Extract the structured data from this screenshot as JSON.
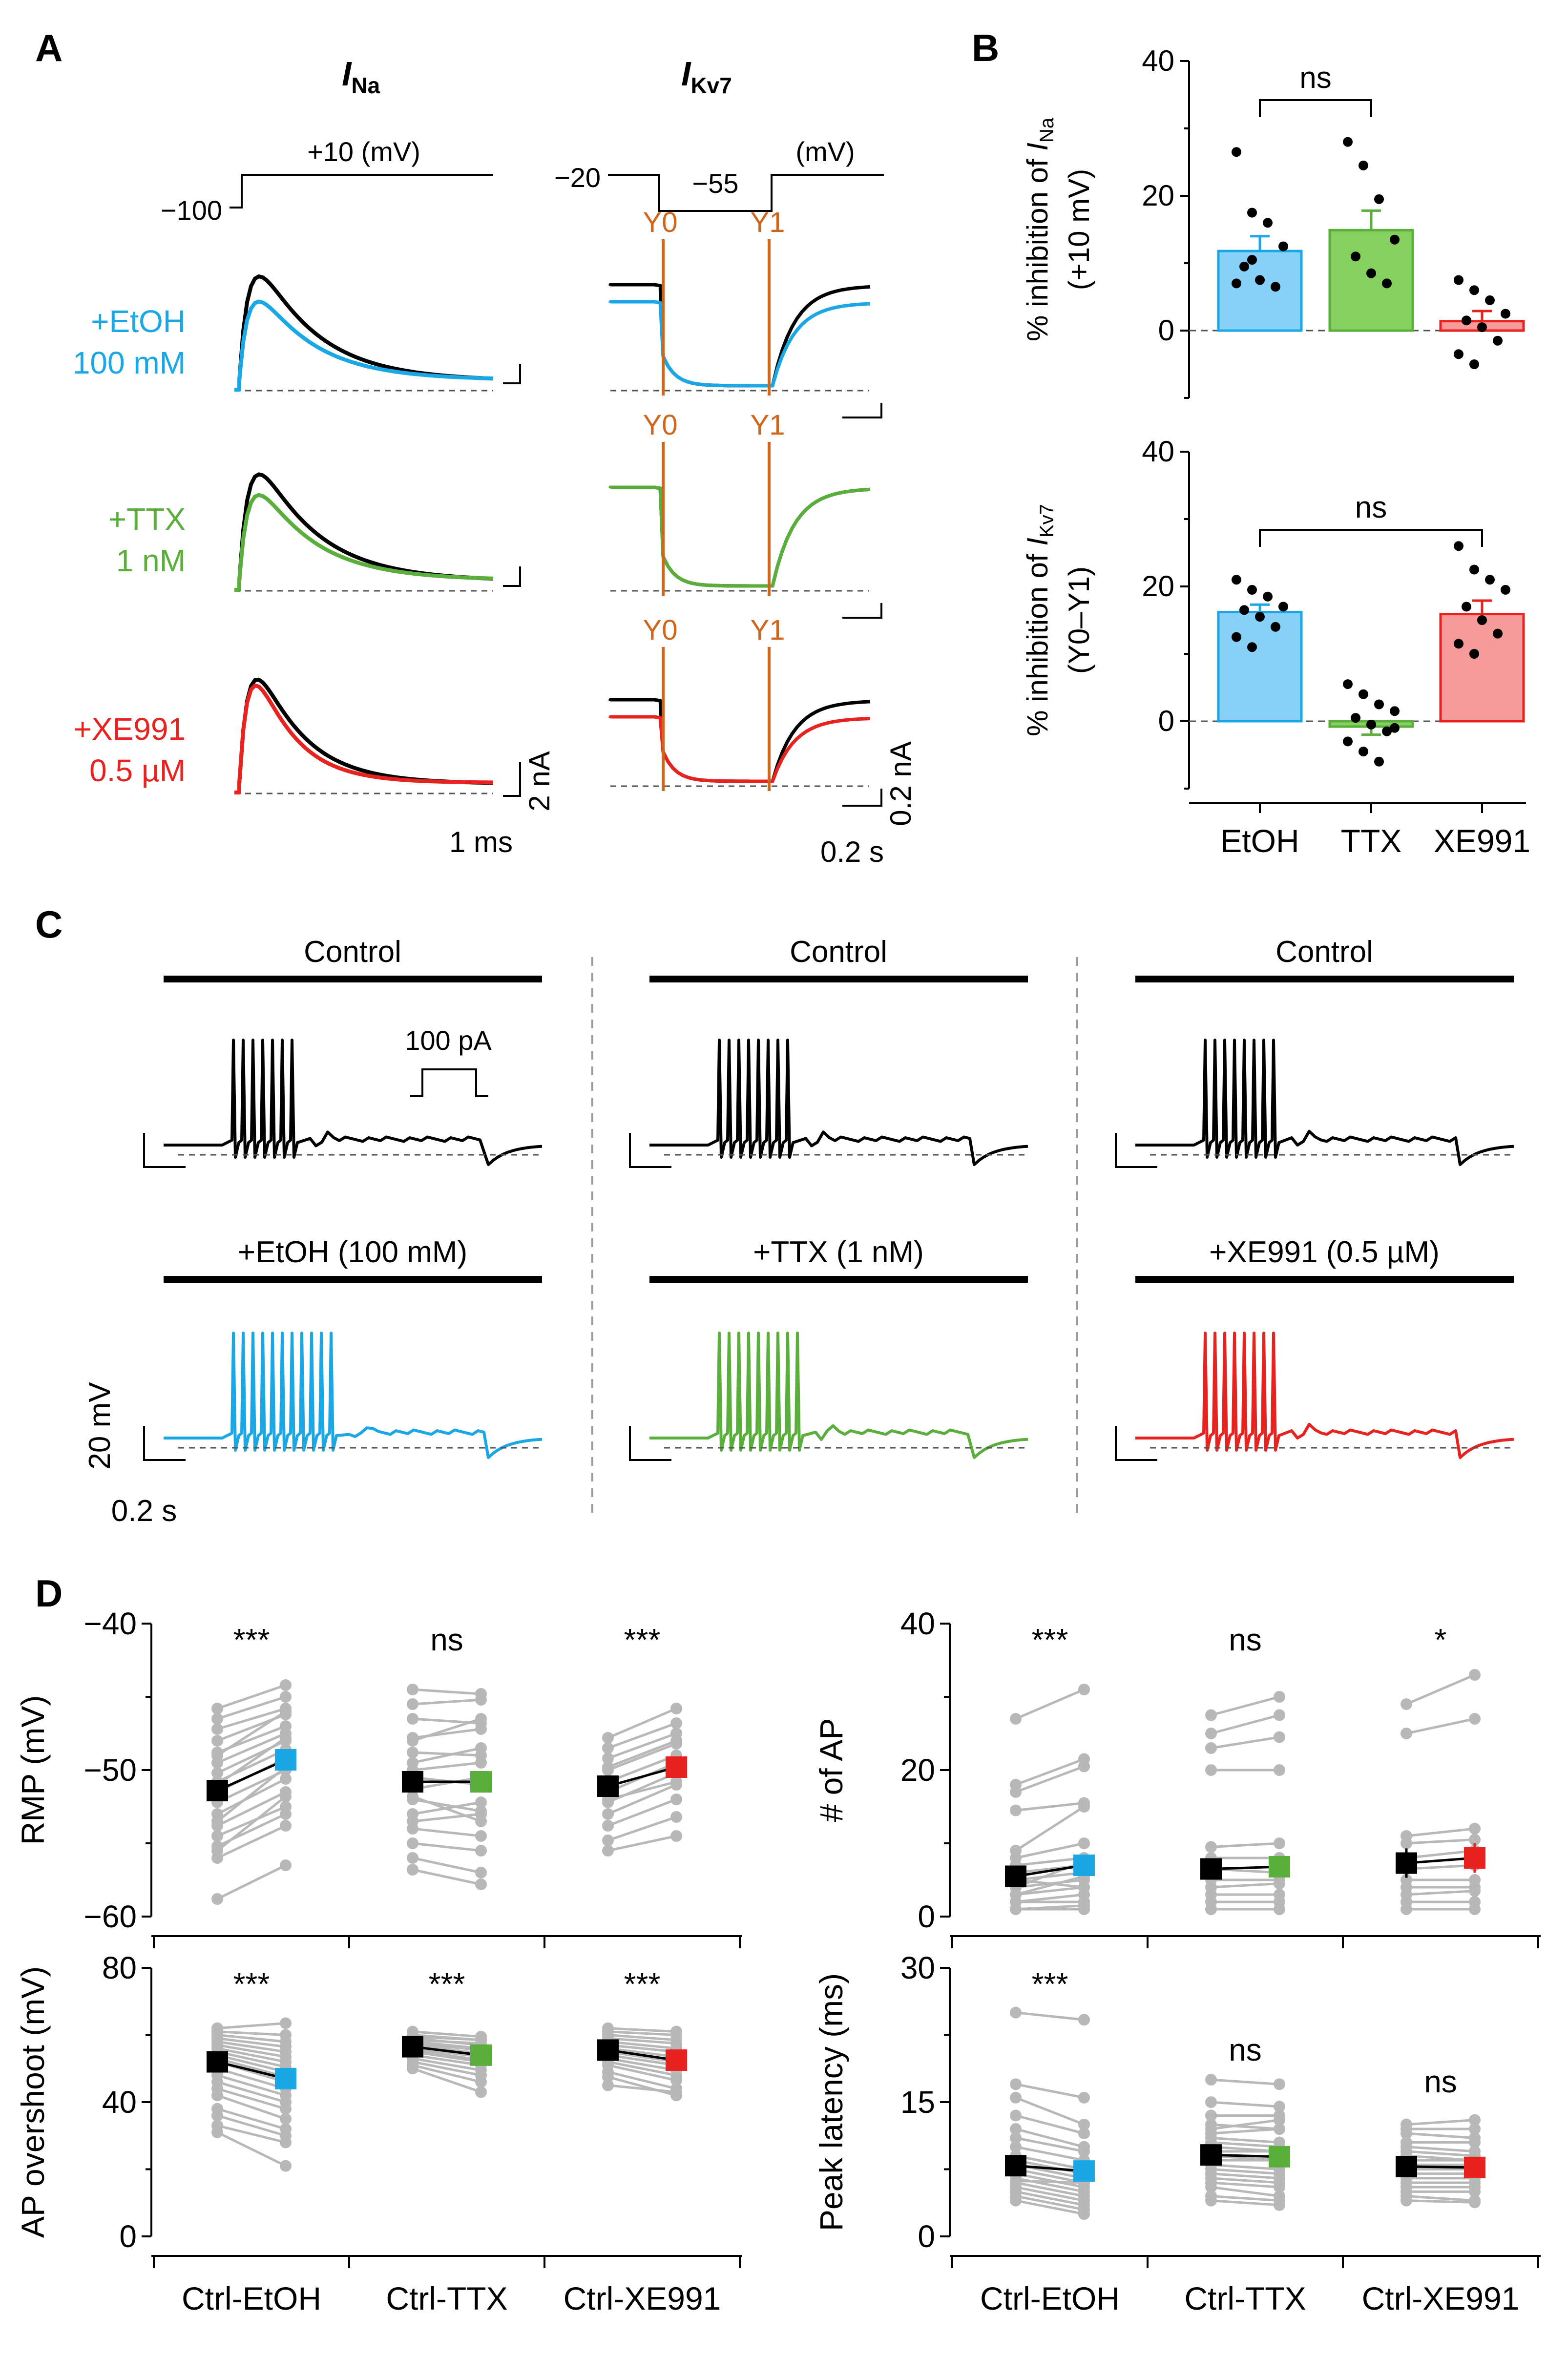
{
  "colors": {
    "black": "#000000",
    "etoh": "#1aa7e6",
    "ttx": "#5aae3b",
    "xe991": "#e8231f",
    "orange": "#d0651c",
    "etoh_fill": "#88d2f7",
    "ttx_fill": "#86d060",
    "xe_fill": "#f59a9a",
    "gray": "#b8b8b8",
    "dash": "#555555"
  },
  "panel_labels": {
    "a": "A",
    "b": "B",
    "c": "C",
    "d": "D"
  },
  "panelA": {
    "ina_title": "I",
    "ina_sub": "Na",
    "ikv7_title": "I",
    "ikv7_sub": "Kv7",
    "ina_protocol": {
      "hold": "−100",
      "step": "+10 (mV)"
    },
    "ikv7_protocol": {
      "hold": "−20",
      "step": "−55",
      "unit": "(mV)"
    },
    "markers": {
      "y0": "Y0",
      "y1": "Y1"
    },
    "rows": [
      {
        "line1": "+EtOH",
        "line2": "100 mM",
        "color": "#1aa7e6"
      },
      {
        "line1": "+TTX",
        "line2": "1 nM",
        "color": "#5aae3b"
      },
      {
        "line1": "+XE991",
        "line2": "0.5 µM",
        "color": "#e8231f"
      }
    ],
    "scales": {
      "ina_y": "2 nA",
      "ina_x": "1 ms",
      "ikv7_y": "0.2 nA",
      "ikv7_x": "0.2 s"
    }
  },
  "chart_data": [
    {
      "id": "B-top",
      "type": "bar",
      "ylabel_prefix": "% inhibition of ",
      "ylabel_i": "I",
      "ylabel_sub": "Na",
      "ylabel_line2": "(+10 mV)",
      "categories": [
        "EtOH",
        "TTX",
        "XE991"
      ],
      "values": [
        11.8,
        14.9,
        1.4
      ],
      "errors": [
        2.2,
        2.9,
        1.5
      ],
      "ylim": [
        -10,
        40
      ],
      "yticks": [
        0,
        20,
        40
      ],
      "points": [
        [
          26.5,
          17.5,
          16.0,
          12.5,
          9.5,
          7.5,
          6.5,
          7.0,
          10.5
        ],
        [
          28.0,
          24.5,
          19.5,
          13.5,
          11.0,
          8.5,
          7.0
        ],
        [
          7.5,
          6.0,
          4.5,
          2.5,
          1.5,
          0.5,
          -1.5,
          -3.5,
          -5.0
        ]
      ],
      "significance": {
        "label": "ns",
        "from": 0,
        "to": 1
      }
    },
    {
      "id": "B-bottom",
      "type": "bar",
      "ylabel_prefix": "% inhibition of ",
      "ylabel_i": "I",
      "ylabel_sub": "Kv7",
      "ylabel_line2": "(Y0–Y1)",
      "categories": [
        "EtOH",
        "TTX",
        "XE991"
      ],
      "values": [
        16.2,
        -0.8,
        15.9
      ],
      "errors": [
        1.1,
        1.2,
        2.0
      ],
      "ylim": [
        -10,
        40
      ],
      "yticks": [
        0,
        20,
        40
      ],
      "points": [
        [
          21.0,
          19.5,
          18.5,
          17.0,
          16.5,
          15.5,
          14.0,
          12.5,
          11.0
        ],
        [
          5.5,
          4.0,
          2.5,
          1.5,
          0.5,
          -0.5,
          -1.5,
          -3.0,
          -4.5,
          -6.0,
          -1.0
        ],
        [
          26.0,
          22.5,
          21.0,
          19.5,
          17.0,
          15.0,
          13.0,
          11.5,
          10.0
        ]
      ],
      "significance": {
        "label": "ns",
        "from": 0,
        "to": 2
      }
    },
    {
      "id": "D-rmp",
      "type": "line",
      "ylabel": "RMP (mV)",
      "ylim": [
        -60,
        -40
      ],
      "yticks": [
        -60,
        -50,
        -40
      ],
      "groups": [
        "Ctrl-EtOH",
        "Ctrl-TTX",
        "Ctrl-XE991"
      ],
      "means": [
        [
          -51.4,
          -49.3
        ],
        [
          -50.8,
          -50.8
        ],
        [
          -51.1,
          -49.8
        ]
      ],
      "significance": [
        "***",
        "ns",
        "***"
      ],
      "pairs": [
        [
          [
            -45.8,
            -44.2
          ],
          [
            -46.5,
            -45.0
          ],
          [
            -47.2,
            -45.8
          ],
          [
            -48.0,
            -46.2
          ],
          [
            -48.8,
            -47.0
          ],
          [
            -49.5,
            -47.5
          ],
          [
            -50.2,
            -48.0
          ],
          [
            -50.8,
            -48.6
          ],
          [
            -51.5,
            -49.2
          ],
          [
            -52.2,
            -50.0
          ],
          [
            -53.0,
            -50.6
          ],
          [
            -53.8,
            -51.5
          ],
          [
            -54.5,
            -52.5
          ],
          [
            -55.2,
            -53.0
          ],
          [
            -56.0,
            -53.8
          ],
          [
            -58.8,
            -56.5
          ],
          [
            -51.0,
            -47.8
          ],
          [
            -49.0,
            -46.0
          ],
          [
            -53.5,
            -49.8
          ],
          [
            -55.5,
            -51.8
          ]
        ],
        [
          [
            -44.5,
            -44.8
          ],
          [
            -45.5,
            -45.2
          ],
          [
            -46.5,
            -46.8
          ],
          [
            -47.8,
            -47.2
          ],
          [
            -48.8,
            -49.0
          ],
          [
            -49.5,
            -48.5
          ],
          [
            -50.5,
            -51.0
          ],
          [
            -51.3,
            -50.5
          ],
          [
            -52.0,
            -52.8
          ],
          [
            -53.0,
            -52.2
          ],
          [
            -54.0,
            -54.5
          ],
          [
            -55.0,
            -55.5
          ],
          [
            -56.0,
            -57.0
          ],
          [
            -56.8,
            -57.8
          ],
          [
            -48.0,
            -46.5
          ],
          [
            -51.8,
            -53.5
          ],
          [
            -50.0,
            -49.5
          ],
          [
            -53.5,
            -53.0
          ]
        ],
        [
          [
            -47.8,
            -45.8
          ],
          [
            -48.5,
            -46.8
          ],
          [
            -49.2,
            -47.5
          ],
          [
            -50.0,
            -48.2
          ],
          [
            -50.8,
            -49.0
          ],
          [
            -51.5,
            -49.5
          ],
          [
            -52.2,
            -50.2
          ],
          [
            -53.0,
            -51.0
          ],
          [
            -53.8,
            -52.0
          ],
          [
            -54.8,
            -53.2
          ],
          [
            -55.5,
            -54.5
          ],
          [
            -49.8,
            -48.0
          ],
          [
            -52.0,
            -50.8
          ]
        ]
      ]
    },
    {
      "id": "D-nap",
      "type": "line",
      "ylabel": "# of AP",
      "ylim": [
        0,
        40
      ],
      "yticks": [
        0,
        20,
        40
      ],
      "groups": [
        "Ctrl-EtOH",
        "Ctrl-TTX",
        "Ctrl-XE991"
      ],
      "means": [
        [
          5.5,
          7.0
        ],
        [
          6.5,
          6.8
        ],
        [
          7.3,
          8.0
        ]
      ],
      "errors": [
        [
          0.9,
          1.1
        ],
        [
          1.2,
          1.2
        ],
        [
          2.0,
          2.0
        ]
      ],
      "significance": [
        "***",
        "ns",
        "*"
      ],
      "pairs": [
        [
          [
            27.0,
            31.0
          ],
          [
            18.0,
            21.5
          ],
          [
            17.0,
            20.5
          ],
          [
            14.5,
            15.5
          ],
          [
            9.0,
            15.0
          ],
          [
            8.0,
            10.0
          ],
          [
            7.0,
            8.0
          ],
          [
            6.0,
            7.0
          ],
          [
            5.0,
            6.0
          ],
          [
            4.0,
            5.0
          ],
          [
            3.0,
            4.0
          ],
          [
            2.0,
            2.0
          ],
          [
            1.0,
            1.0
          ],
          [
            1.0,
            1.5
          ],
          [
            3.0,
            5.5
          ],
          [
            5.0,
            4.0
          ],
          [
            2.0,
            3.0
          ],
          [
            4.0,
            7.5
          ]
        ],
        [
          [
            27.5,
            30.0
          ],
          [
            25.0,
            27.5
          ],
          [
            23.0,
            24.5
          ],
          [
            20.0,
            20.0
          ],
          [
            9.5,
            10.0
          ],
          [
            8.0,
            8.0
          ],
          [
            6.5,
            6.0
          ],
          [
            5.0,
            5.0
          ],
          [
            4.0,
            4.5
          ],
          [
            3.0,
            3.0
          ],
          [
            2.0,
            2.0
          ],
          [
            1.0,
            1.0
          ],
          [
            1.0,
            1.0
          ]
        ],
        [
          [
            29.0,
            33.0
          ],
          [
            25.0,
            27.0
          ],
          [
            11.0,
            12.0
          ],
          [
            10.0,
            10.5
          ],
          [
            8.0,
            9.0
          ],
          [
            6.5,
            7.0
          ],
          [
            5.0,
            5.0
          ],
          [
            4.0,
            4.0
          ],
          [
            3.0,
            3.5
          ],
          [
            2.0,
            2.0
          ],
          [
            1.0,
            1.0
          ]
        ]
      ]
    },
    {
      "id": "D-overshoot",
      "type": "line",
      "ylabel": "AP overshoot (mV)",
      "ylim": [
        0,
        80
      ],
      "yticks": [
        0,
        40,
        80
      ],
      "groups": [
        "Ctrl-EtOH",
        "Ctrl-TTX",
        "Ctrl-XE991"
      ],
      "means": [
        [
          52.0,
          47.0
        ],
        [
          56.5,
          54.0
        ],
        [
          55.5,
          52.5
        ]
      ],
      "significance": [
        "***",
        "***",
        "***"
      ],
      "pairs": [
        [
          [
            62.0,
            63.5
          ],
          [
            61.0,
            60.0
          ],
          [
            60.0,
            58.0
          ],
          [
            59.0,
            56.5
          ],
          [
            58.0,
            55.0
          ],
          [
            57.0,
            53.5
          ],
          [
            56.0,
            52.0
          ],
          [
            55.0,
            50.5
          ],
          [
            54.0,
            49.0
          ],
          [
            53.0,
            47.5
          ],
          [
            52.0,
            46.0
          ],
          [
            50.0,
            44.0
          ],
          [
            48.0,
            42.0
          ],
          [
            46.0,
            40.0
          ],
          [
            44.0,
            38.0
          ],
          [
            42.0,
            35.0
          ],
          [
            38.0,
            32.0
          ],
          [
            33.0,
            28.0
          ],
          [
            31.0,
            21.0
          ],
          [
            36.0,
            30.0
          ]
        ],
        [
          [
            61.0,
            59.5
          ],
          [
            60.0,
            58.5
          ],
          [
            59.0,
            57.0
          ],
          [
            58.0,
            56.0
          ],
          [
            57.5,
            55.5
          ],
          [
            57.0,
            54.5
          ],
          [
            56.0,
            53.5
          ],
          [
            55.5,
            52.5
          ],
          [
            55.0,
            52.0
          ],
          [
            54.0,
            51.0
          ],
          [
            53.0,
            49.5
          ],
          [
            52.0,
            48.0
          ],
          [
            51.0,
            46.0
          ],
          [
            50.0,
            43.0
          ],
          [
            58.5,
            57.5
          ],
          [
            59.5,
            58.5
          ]
        ],
        [
          [
            62.0,
            61.0
          ],
          [
            61.0,
            60.0
          ],
          [
            60.0,
            58.5
          ],
          [
            59.0,
            57.5
          ],
          [
            58.0,
            56.0
          ],
          [
            57.0,
            55.0
          ],
          [
            56.0,
            53.5
          ],
          [
            55.0,
            52.0
          ],
          [
            54.0,
            51.0
          ],
          [
            53.0,
            49.5
          ],
          [
            52.0,
            48.0
          ],
          [
            51.0,
            46.5
          ],
          [
            49.0,
            44.0
          ],
          [
            47.5,
            42.0
          ],
          [
            45.0,
            43.0
          ]
        ]
      ]
    },
    {
      "id": "D-latency",
      "type": "line",
      "ylabel": "Peak latency (ms)",
      "ylim": [
        0,
        30
      ],
      "yticks": [
        0,
        15,
        30
      ],
      "groups": [
        "Ctrl-EtOH",
        "Ctrl-TTX",
        "Ctrl-XE991"
      ],
      "means": [
        [
          7.9,
          7.3
        ],
        [
          9.1,
          8.9
        ],
        [
          7.8,
          7.7
        ]
      ],
      "significance": [
        "***",
        "ns",
        "ns"
      ],
      "pairs": [
        [
          [
            25.0,
            24.2
          ],
          [
            17.0,
            15.5
          ],
          [
            15.5,
            12.5
          ],
          [
            13.5,
            11.5
          ],
          [
            12.0,
            10.0
          ],
          [
            11.0,
            9.5
          ],
          [
            10.0,
            8.5
          ],
          [
            9.0,
            7.5
          ],
          [
            8.5,
            7.0
          ],
          [
            8.0,
            6.5
          ],
          [
            7.5,
            6.0
          ],
          [
            7.0,
            5.5
          ],
          [
            6.5,
            5.0
          ],
          [
            6.0,
            4.5
          ],
          [
            5.5,
            4.0
          ],
          [
            5.0,
            3.5
          ],
          [
            4.5,
            3.0
          ],
          [
            4.0,
            2.5
          ],
          [
            6.2,
            6.0
          ]
        ],
        [
          [
            17.5,
            17.0
          ],
          [
            15.0,
            14.5
          ],
          [
            13.5,
            13.5
          ],
          [
            12.5,
            12.0
          ],
          [
            11.5,
            12.0
          ],
          [
            11.0,
            10.5
          ],
          [
            10.5,
            10.0
          ],
          [
            10.0,
            9.5
          ],
          [
            9.5,
            9.5
          ],
          [
            9.0,
            8.5
          ],
          [
            8.5,
            8.5
          ],
          [
            8.0,
            7.5
          ],
          [
            7.5,
            7.0
          ],
          [
            7.0,
            6.5
          ],
          [
            6.5,
            6.0
          ],
          [
            6.0,
            5.5
          ],
          [
            5.5,
            4.5
          ],
          [
            4.5,
            4.0
          ],
          [
            4.0,
            3.5
          ],
          [
            12.0,
            13.0
          ]
        ],
        [
          [
            12.5,
            13.0
          ],
          [
            12.0,
            12.0
          ],
          [
            11.5,
            11.0
          ],
          [
            10.5,
            10.5
          ],
          [
            10.0,
            9.5
          ],
          [
            9.5,
            9.0
          ],
          [
            9.0,
            8.5
          ],
          [
            8.5,
            8.5
          ],
          [
            8.0,
            8.0
          ],
          [
            7.5,
            7.5
          ],
          [
            7.0,
            7.0
          ],
          [
            6.5,
            6.5
          ],
          [
            6.0,
            6.0
          ],
          [
            5.5,
            5.5
          ],
          [
            5.0,
            5.0
          ],
          [
            4.5,
            4.0
          ],
          [
            4.0,
            3.8
          ]
        ]
      ]
    }
  ],
  "panelC": {
    "columns": [
      {
        "control": "Control",
        "drug": "+EtOH (100 mM)",
        "color": "#1aa7e6",
        "ctrl_spikes": 7,
        "drug_spikes": 11
      },
      {
        "control": "Control",
        "drug": "+TTX (1 nM)",
        "color": "#5aae3b",
        "ctrl_spikes": 8,
        "drug_spikes": 9
      },
      {
        "control": "Control",
        "drug": "+XE991 (0.5 µM)",
        "color": "#e8231f",
        "ctrl_spikes": 8,
        "drug_spikes": 8
      }
    ],
    "stim_label": "100 pA",
    "scale_y": "20 mV",
    "scale_x": "0.2 s"
  },
  "panelD_xlabels": [
    "Ctrl-EtOH",
    "Ctrl-TTX",
    "Ctrl-XE991"
  ]
}
